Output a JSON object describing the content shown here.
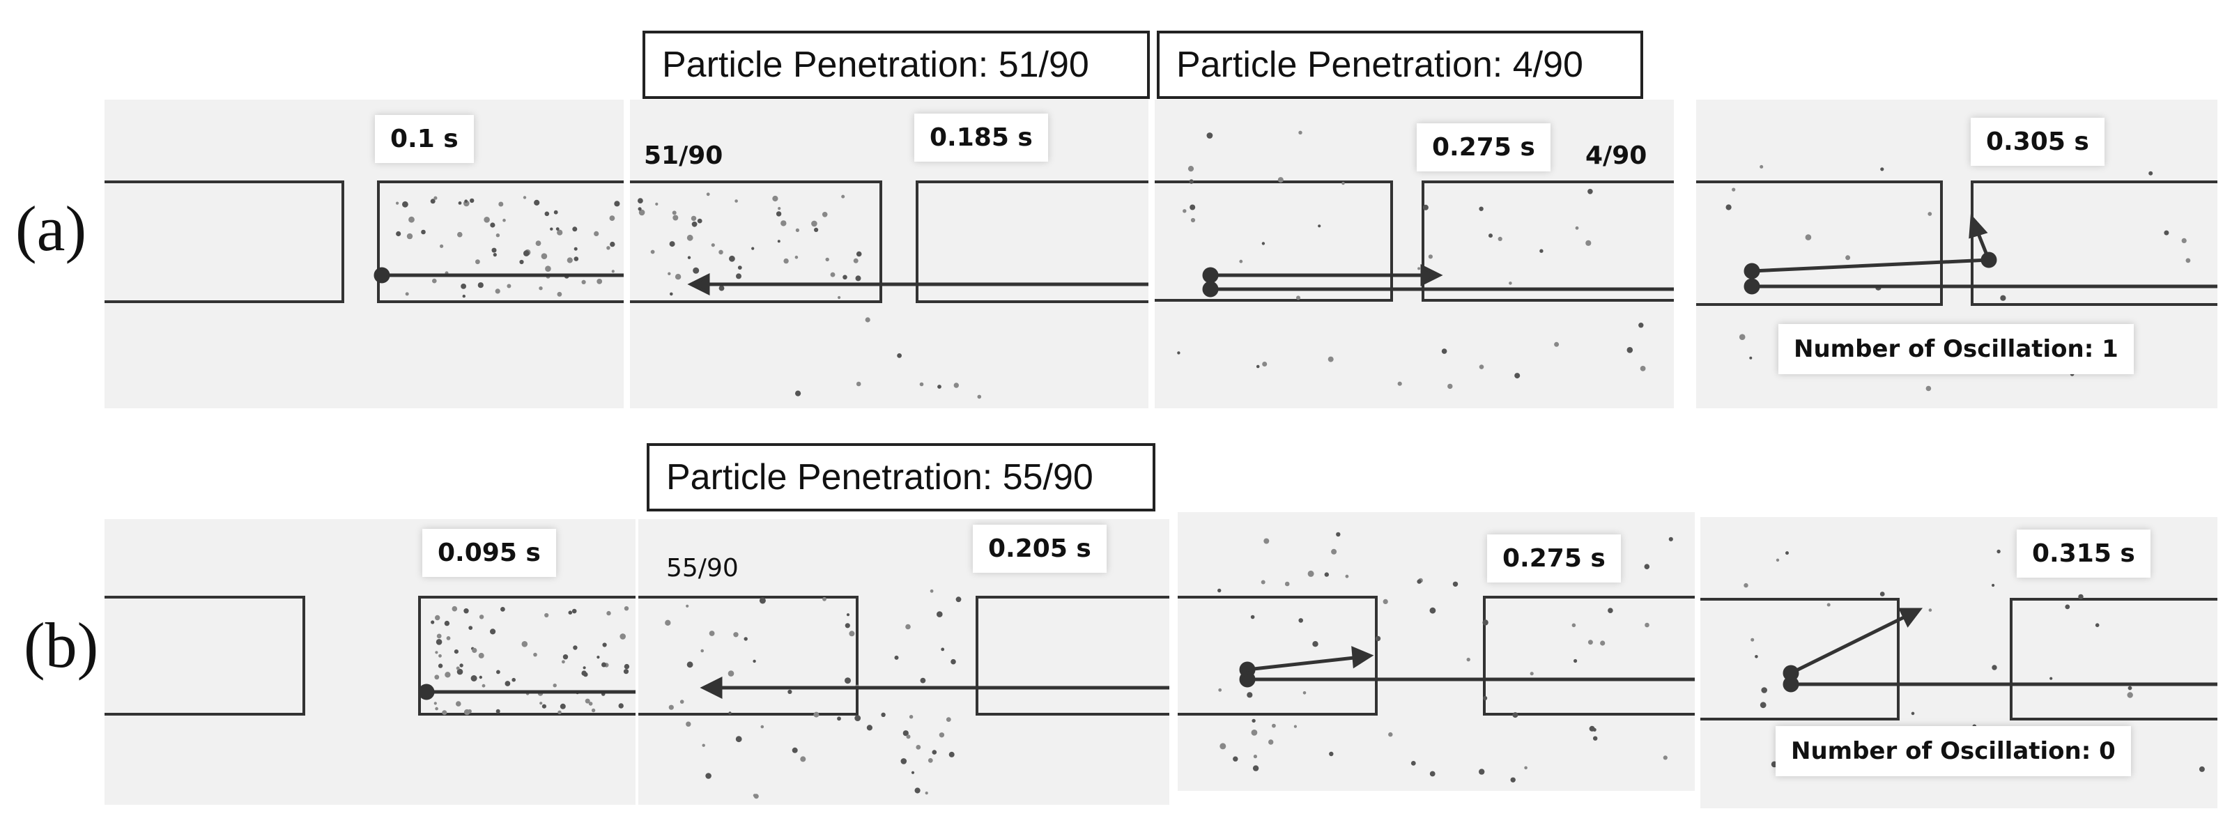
{
  "rows": [
    {
      "label": "(a)",
      "headers": [
        "Particle Penetration: 51/90",
        "Particle Penetration: 4/90"
      ],
      "panels": [
        {
          "time": "0.1 s"
        },
        {
          "time": "0.185 s",
          "count": "51/90"
        },
        {
          "time": "0.275 s",
          "count": "4/90"
        },
        {
          "time": "0.305 s",
          "oscillation": "Number of Oscillation: 1"
        }
      ]
    },
    {
      "label": "(b)",
      "headers": [
        "Particle Penetration: 55/90"
      ],
      "panels": [
        {
          "time": "0.095 s"
        },
        {
          "time": "0.205 s",
          "count": "55/90"
        },
        {
          "time": "0.275 s"
        },
        {
          "time": "0.315 s",
          "oscillation": "Number of Oscillation: 0"
        }
      ]
    }
  ]
}
